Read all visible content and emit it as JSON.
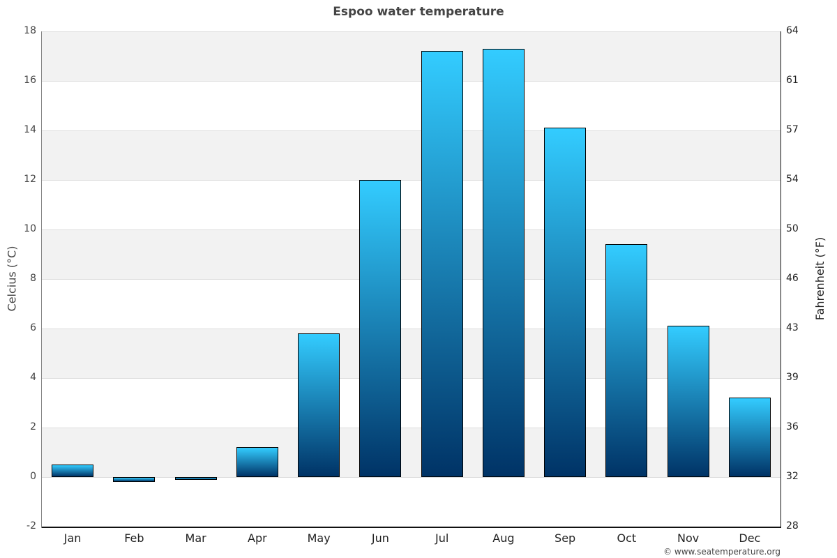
{
  "chart_data": {
    "type": "bar",
    "title": "Espoo water temperature",
    "categories": [
      "Jan",
      "Feb",
      "Mar",
      "Apr",
      "May",
      "Jun",
      "Jul",
      "Aug",
      "Sep",
      "Oct",
      "Nov",
      "Dec"
    ],
    "values": [
      0.5,
      -0.2,
      -0.1,
      1.2,
      5.8,
      12.0,
      17.2,
      17.3,
      14.1,
      9.4,
      6.1,
      3.2
    ],
    "xlabel": "",
    "ylabel": "Celcius (°C)",
    "ylabel_right": "Fahrenheit (°F)",
    "ylim": [
      -2,
      18
    ],
    "yticks": [
      -2,
      0,
      2,
      4,
      6,
      8,
      10,
      12,
      14,
      16,
      18
    ],
    "yticks_right": [
      28,
      32,
      36,
      39,
      43,
      46,
      50,
      54,
      57,
      61,
      64
    ],
    "grid": true,
    "legend": "none",
    "colors": {
      "bar_top": "#33ccff",
      "bar_bottom": "#003366",
      "band": "#f2f2f2",
      "grid": "#dddddd"
    }
  },
  "credit": "© www.seatemperature.org"
}
